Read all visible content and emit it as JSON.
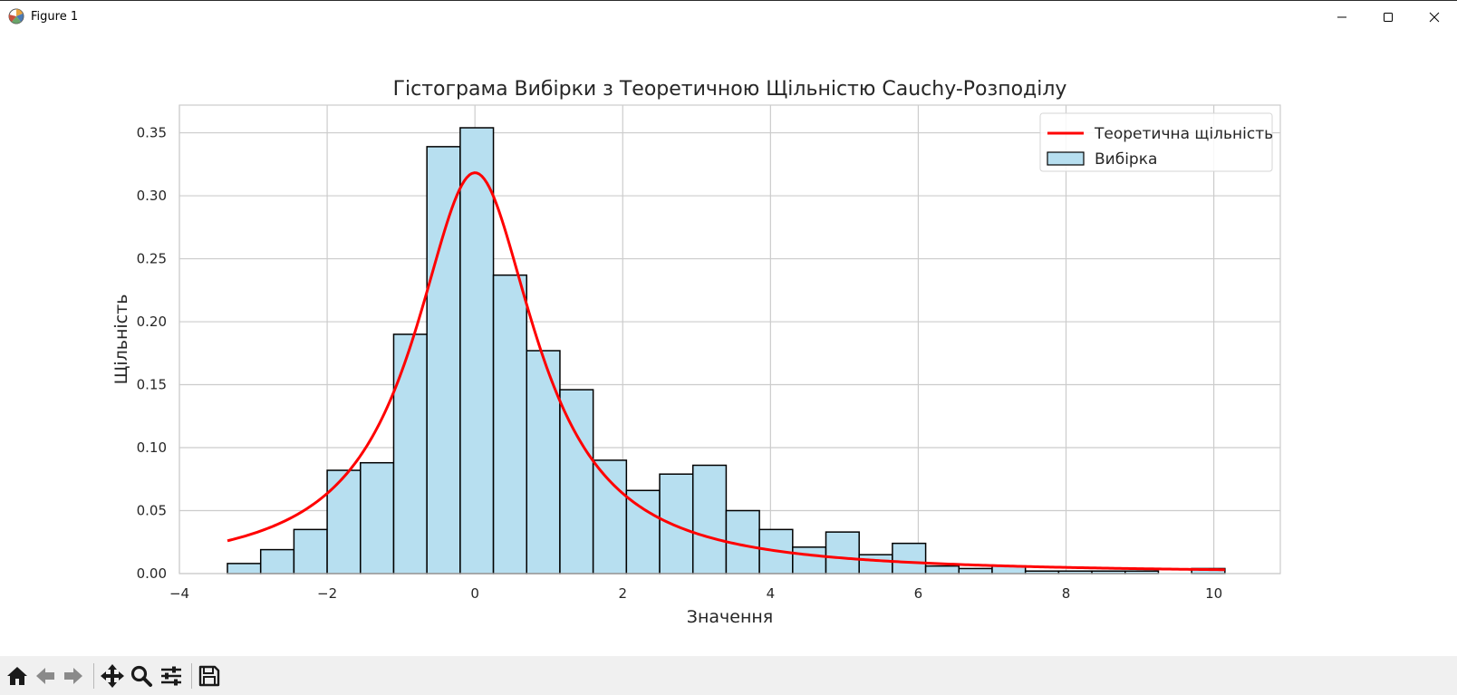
{
  "window": {
    "title": "Figure 1",
    "icon": "matplotlib-icon",
    "controls": [
      "minimize-icon",
      "maximize-icon",
      "close-icon"
    ]
  },
  "toolbar": {
    "buttons": [
      "home-icon",
      "back-arrow-icon",
      "forward-arrow-icon",
      "pan-icon",
      "zoom-icon",
      "configure-subplots-icon",
      "save-icon"
    ]
  },
  "chart_data": {
    "type": "bar",
    "title": "Гістограма Вибірки з Теоретичною Щільністю Cauchy-Розподілу",
    "xlabel": "Значення",
    "ylabel": "Щільність",
    "xlim": [
      -4,
      10.9
    ],
    "ylim": [
      0,
      0.372
    ],
    "grid": true,
    "legend_position": "top-right",
    "x_ticks": [
      "−4",
      "−2",
      "0",
      "2",
      "4",
      "6",
      "8",
      "10"
    ],
    "x_tick_values": [
      -4,
      -2,
      0,
      2,
      4,
      6,
      8,
      10
    ],
    "y_ticks": [
      "0.00",
      "0.05",
      "0.10",
      "0.15",
      "0.20",
      "0.25",
      "0.30",
      "0.35"
    ],
    "y_tick_values": [
      0,
      0.05,
      0.1,
      0.15,
      0.2,
      0.25,
      0.3,
      0.35
    ],
    "histogram": {
      "name": "Вибірка",
      "color": "#b7dff0",
      "edgecolor": "#000000",
      "bin_edges": [
        -3.35,
        -2.9,
        -2.45,
        -2.0,
        -1.55,
        -1.1,
        -0.65,
        -0.2,
        0.25,
        0.7,
        1.15,
        1.6,
        2.05,
        2.5,
        2.95,
        3.4,
        3.85,
        4.3,
        4.75,
        5.2,
        5.65,
        6.1,
        6.55,
        7.0,
        7.45,
        7.9,
        8.35,
        8.8,
        9.25,
        9.7,
        10.15
      ],
      "values": [
        0.008,
        0.019,
        0.035,
        0.082,
        0.088,
        0.19,
        0.339,
        0.354,
        0.237,
        0.177,
        0.146,
        0.09,
        0.066,
        0.079,
        0.086,
        0.05,
        0.035,
        0.021,
        0.033,
        0.015,
        0.024,
        0.006,
        0.004,
        0.006,
        0.002,
        0.002,
        0.002,
        0.002,
        0.0,
        0.004
      ]
    },
    "curve": {
      "name": "Теоретична щільність",
      "color": "#ff0000",
      "distribution": "cauchy",
      "location": 0,
      "scale": 1,
      "x_range": [
        -3.35,
        10.15
      ]
    }
  }
}
